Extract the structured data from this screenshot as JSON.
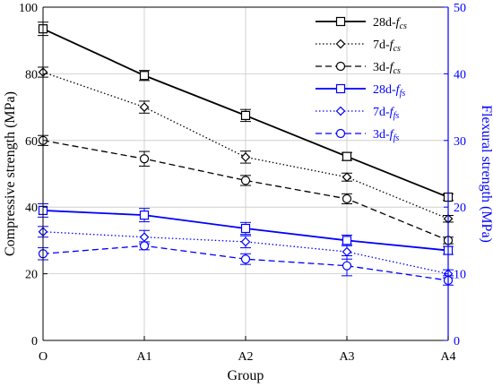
{
  "chart_data": {
    "type": "line",
    "xlabel": "Group",
    "ylabel_left": "Compressive strength (MPa)",
    "ylabel_right": "Flexural strength (MPa)",
    "categories": [
      "O",
      "A1",
      "A2",
      "A3",
      "A4"
    ],
    "y_left": {
      "min": 0,
      "max": 100,
      "ticks": [
        0,
        20,
        40,
        60,
        80,
        100
      ]
    },
    "y_right": {
      "min": 0,
      "max": 50,
      "ticks": [
        0,
        10,
        20,
        30,
        40,
        50
      ]
    },
    "grid": true,
    "legend_position": "top-right",
    "colors": {
      "compressive": "#000000",
      "flexural": "#0000ff"
    },
    "series": [
      {
        "name": "28d-fcs",
        "label_main": "28d-",
        "label_sub": "cs",
        "axis": "left",
        "line": "solid",
        "marker": "square",
        "color": "#000000",
        "values": [
          93.5,
          79.5,
          67.5,
          55.2,
          43.0
        ],
        "errors": [
          2.0,
          1.5,
          1.8,
          1.2,
          1.0
        ]
      },
      {
        "name": "7d-fcs",
        "label_main": "7d-",
        "label_sub": "cs",
        "axis": "left",
        "line": "dotted",
        "marker": "diamond",
        "color": "#000000",
        "values": [
          80.5,
          70.0,
          55.0,
          49.0,
          36.5
        ],
        "errors": [
          1.5,
          1.8,
          1.8,
          1.2,
          1.0
        ]
      },
      {
        "name": "3d-fcs",
        "label_main": "3d-",
        "label_sub": "cs",
        "axis": "left",
        "line": "dashed",
        "marker": "circle",
        "color": "#000000",
        "values": [
          60.0,
          54.5,
          48.0,
          42.5,
          30.0
        ],
        "errors": [
          1.5,
          2.2,
          1.5,
          1.5,
          1.0
        ]
      },
      {
        "name": "28d-ffs",
        "label_main": "28d-",
        "label_sub": "fs",
        "axis": "right",
        "line": "solid",
        "marker": "square",
        "color": "#0000ff",
        "values": [
          19.5,
          18.8,
          16.8,
          15.0,
          13.5
        ],
        "errors": [
          1.0,
          1.0,
          0.9,
          0.8,
          0.6
        ]
      },
      {
        "name": "7d-ffs",
        "label_main": "7d-",
        "label_sub": "fs",
        "axis": "right",
        "line": "dotted",
        "marker": "diamond",
        "color": "#0000ff",
        "values": [
          16.3,
          15.5,
          14.8,
          13.3,
          10.0
        ],
        "errors": [
          0.8,
          1.0,
          0.9,
          1.1,
          0.6
        ]
      },
      {
        "name": "3d-ffs",
        "label_main": "3d-",
        "label_sub": "fs",
        "axis": "right",
        "line": "dashed",
        "marker": "circle",
        "color": "#0000ff",
        "values": [
          13.0,
          14.2,
          12.2,
          11.2,
          9.0
        ],
        "errors": [
          0.9,
          0.6,
          0.8,
          1.5,
          0.7
        ]
      }
    ]
  }
}
